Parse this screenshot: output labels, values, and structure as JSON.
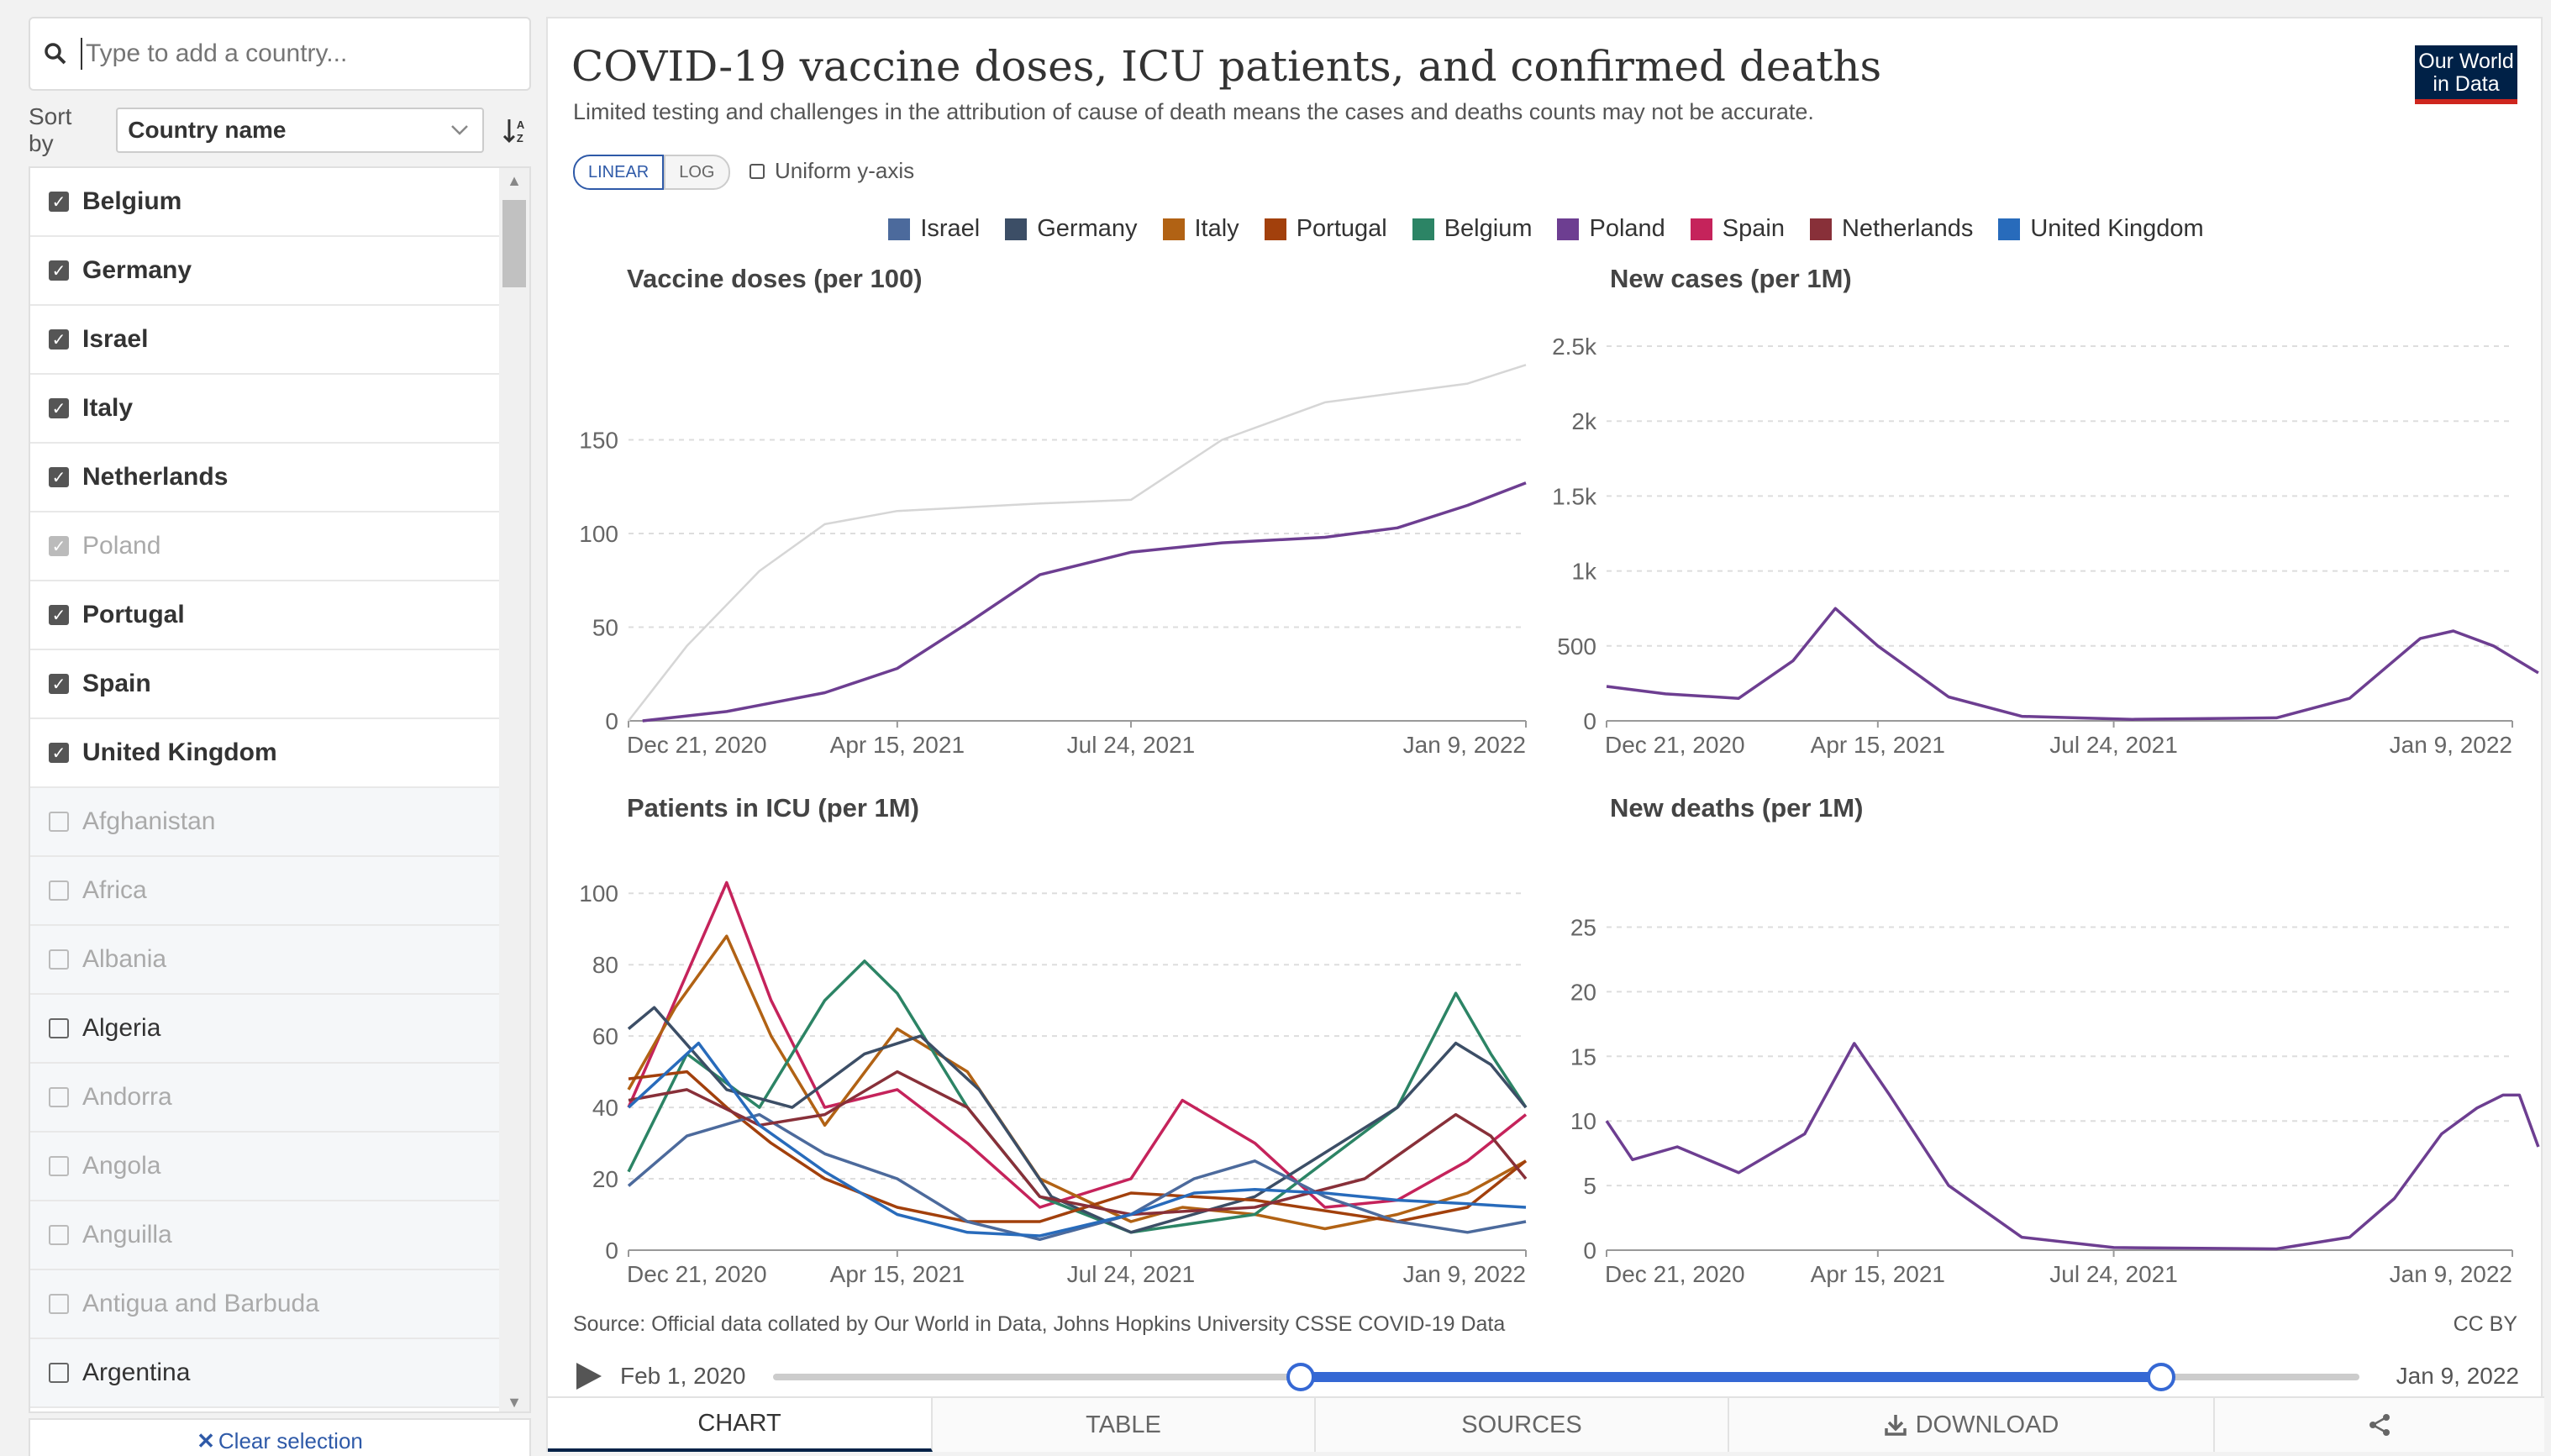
{
  "search": {
    "placeholder": "Type to add a country..."
  },
  "sort": {
    "label": "Sort by",
    "value": "Country name"
  },
  "countries": [
    {
      "name": "Belgium",
      "checked": true,
      "dim": false
    },
    {
      "name": "Germany",
      "checked": true,
      "dim": false
    },
    {
      "name": "Israel",
      "checked": true,
      "dim": false
    },
    {
      "name": "Italy",
      "checked": true,
      "dim": false
    },
    {
      "name": "Netherlands",
      "checked": true,
      "dim": false
    },
    {
      "name": "Poland",
      "checked": true,
      "dim": true
    },
    {
      "name": "Portugal",
      "checked": true,
      "dim": false
    },
    {
      "name": "Spain",
      "checked": true,
      "dim": false
    },
    {
      "name": "United Kingdom",
      "checked": true,
      "dim": false
    },
    {
      "name": "Afghanistan",
      "checked": false,
      "dim": true
    },
    {
      "name": "Africa",
      "checked": false,
      "dim": true
    },
    {
      "name": "Albania",
      "checked": false,
      "dim": true
    },
    {
      "name": "Algeria",
      "checked": false,
      "dim": false
    },
    {
      "name": "Andorra",
      "checked": false,
      "dim": true
    },
    {
      "name": "Angola",
      "checked": false,
      "dim": true
    },
    {
      "name": "Anguilla",
      "checked": false,
      "dim": true
    },
    {
      "name": "Antigua and Barbuda",
      "checked": false,
      "dim": true
    },
    {
      "name": "Argentina",
      "checked": false,
      "dim": false
    }
  ],
  "clear_label": "Clear selection",
  "header": {
    "title": "COVID-19 vaccine doses, ICU patients, and confirmed deaths",
    "subtitle": "Limited testing and challenges in the attribution of cause of death means the cases and deaths counts may not be accurate.",
    "logo_line1": "Our World",
    "logo_line2": "in Data"
  },
  "controls": {
    "linear": "LINEAR",
    "log": "LOG",
    "uniform": "Uniform y-axis"
  },
  "legend": [
    {
      "name": "Israel",
      "color": "#4c6a9c"
    },
    {
      "name": "Germany",
      "color": "#3c4e66"
    },
    {
      "name": "Italy",
      "color": "#b16214"
    },
    {
      "name": "Portugal",
      "color": "#a2400c"
    },
    {
      "name": "Belgium",
      "color": "#2c8465"
    },
    {
      "name": "Poland",
      "color": "#6d3e91"
    },
    {
      "name": "Spain",
      "color": "#c5235b"
    },
    {
      "name": "Netherlands",
      "color": "#883039"
    },
    {
      "name": "United Kingdom",
      "color": "#286bbb"
    }
  ],
  "chart_data": [
    {
      "type": "line",
      "title": "Vaccine doses (per 100)",
      "x_ticks": [
        "Dec 21, 2020",
        "Apr 15, 2021",
        "Jul 24, 2021",
        "Jan 9, 2022"
      ],
      "y_ticks": [
        "0",
        "50",
        "100",
        "150"
      ],
      "ylim": [
        0,
        200
      ],
      "highlighted": "Poland",
      "series": [
        {
          "name": "Poland",
          "highlight": true,
          "x": [
            "2020-12-27",
            "2021-02-01",
            "2021-03-15",
            "2021-04-15",
            "2021-05-15",
            "2021-06-15",
            "2021-07-24",
            "2021-09-01",
            "2021-10-15",
            "2021-11-15",
            "2021-12-15",
            "2022-01-09"
          ],
          "values": [
            0,
            5,
            15,
            28,
            52,
            78,
            90,
            95,
            98,
            103,
            115,
            127
          ]
        },
        {
          "name": "Israel",
          "highlight": false,
          "x": [
            "2020-12-21",
            "2021-01-15",
            "2021-02-15",
            "2021-03-15",
            "2021-04-15",
            "2021-06-15",
            "2021-07-24",
            "2021-09-01",
            "2021-10-15",
            "2021-12-15",
            "2022-01-09"
          ],
          "values": [
            0,
            40,
            80,
            105,
            112,
            116,
            118,
            150,
            170,
            180,
            190
          ]
        }
      ]
    },
    {
      "type": "line",
      "title": "New cases (per 1M)",
      "x_ticks": [
        "Dec 21, 2020",
        "Apr 15, 2021",
        "Jul 24, 2021",
        "Jan 9, 2022"
      ],
      "y_ticks": [
        "0",
        "500",
        "1k",
        "1.5k",
        "2k",
        "2.5k"
      ],
      "ylim": [
        0,
        2500
      ],
      "series": [
        {
          "name": "Poland",
          "highlight": true,
          "x": [
            "2020-12-21",
            "2021-01-15",
            "2021-02-15",
            "2021-03-10",
            "2021-03-28",
            "2021-04-15",
            "2021-05-15",
            "2021-06-15",
            "2021-08-01",
            "2021-10-01",
            "2021-11-01",
            "2021-12-01",
            "2021-12-15",
            "2022-01-01",
            "2022-01-20"
          ],
          "values": [
            230,
            180,
            150,
            400,
            750,
            500,
            160,
            30,
            10,
            20,
            150,
            550,
            600,
            500,
            320
          ]
        }
      ]
    },
    {
      "type": "line",
      "title": "Patients in ICU (per 1M)",
      "x_ticks": [
        "Dec 21, 2020",
        "Apr 15, 2021",
        "Jul 24, 2021",
        "Jan 9, 2022"
      ],
      "y_ticks": [
        "0",
        "20",
        "40",
        "60",
        "80",
        "100"
      ],
      "ylim": [
        0,
        105
      ],
      "series": [
        {
          "name": "Spain",
          "highlight": true,
          "x": [
            "2020-12-21",
            "2021-01-10",
            "2021-02-01",
            "2021-02-20",
            "2021-03-15",
            "2021-04-15",
            "2021-05-15",
            "2021-06-15",
            "2021-07-24",
            "2021-08-15",
            "2021-09-15",
            "2021-10-15",
            "2021-11-15",
            "2021-12-15",
            "2022-01-09"
          ],
          "values": [
            40,
            70,
            103,
            70,
            40,
            45,
            30,
            12,
            20,
            42,
            30,
            12,
            14,
            25,
            38
          ]
        },
        {
          "name": "Italy",
          "highlight": true,
          "x": [
            "2020-12-21",
            "2021-01-10",
            "2021-02-01",
            "2021-02-20",
            "2021-03-15",
            "2021-04-15",
            "2021-05-15",
            "2021-06-15",
            "2021-07-24",
            "2021-08-15",
            "2021-09-15",
            "2021-10-15",
            "2021-11-15",
            "2021-12-15",
            "2022-01-09"
          ],
          "values": [
            45,
            68,
            88,
            60,
            35,
            62,
            50,
            20,
            8,
            12,
            10,
            6,
            10,
            16,
            25
          ]
        },
        {
          "name": "Belgium",
          "highlight": true,
          "x": [
            "2020-12-21",
            "2021-01-15",
            "2021-02-15",
            "2021-03-15",
            "2021-04-01",
            "2021-04-15",
            "2021-05-15",
            "2021-06-15",
            "2021-07-24",
            "2021-09-15",
            "2021-11-15",
            "2021-12-10",
            "2021-12-25",
            "2022-01-09"
          ],
          "values": [
            22,
            55,
            40,
            70,
            81,
            72,
            40,
            15,
            5,
            10,
            40,
            72,
            55,
            40
          ]
        },
        {
          "name": "Germany",
          "highlight": true,
          "x": [
            "2020-12-21",
            "2021-01-01",
            "2021-02-01",
            "2021-03-01",
            "2021-04-01",
            "2021-04-25",
            "2021-05-20",
            "2021-06-20",
            "2021-07-24",
            "2021-09-15",
            "2021-11-15",
            "2021-12-10",
            "2021-12-25",
            "2022-01-09"
          ],
          "values": [
            62,
            68,
            45,
            40,
            55,
            60,
            45,
            15,
            5,
            15,
            40,
            58,
            52,
            40
          ]
        },
        {
          "name": "Portugal",
          "highlight": true,
          "x": [
            "2020-12-21",
            "2021-01-15",
            "2021-02-01",
            "2021-02-20",
            "2021-03-15",
            "2021-04-15",
            "2021-05-15",
            "2021-06-15",
            "2021-07-24",
            "2021-09-15",
            "2021-11-15",
            "2021-12-15",
            "2022-01-09"
          ],
          "values": [
            48,
            50,
            40,
            30,
            20,
            12,
            8,
            8,
            16,
            14,
            8,
            12,
            25
          ]
        },
        {
          "name": "Israel",
          "highlight": true,
          "x": [
            "2020-12-21",
            "2021-01-15",
            "2021-02-15",
            "2021-03-15",
            "2021-04-15",
            "2021-05-15",
            "2021-06-15",
            "2021-07-24",
            "2021-08-20",
            "2021-09-15",
            "2021-10-15",
            "2021-11-15",
            "2021-12-15",
            "2022-01-09"
          ],
          "values": [
            18,
            32,
            38,
            27,
            20,
            8,
            3,
            10,
            20,
            25,
            15,
            8,
            5,
            8
          ]
        },
        {
          "name": "Netherlands",
          "highlight": true,
          "x": [
            "2020-12-21",
            "2021-01-15",
            "2021-02-15",
            "2021-03-15",
            "2021-04-15",
            "2021-05-15",
            "2021-06-15",
            "2021-07-24",
            "2021-09-15",
            "2021-11-01",
            "2021-12-10",
            "2021-12-25",
            "2022-01-09"
          ],
          "values": [
            42,
            45,
            35,
            38,
            50,
            40,
            15,
            10,
            12,
            20,
            38,
            32,
            20
          ]
        },
        {
          "name": "United Kingdom",
          "highlight": true,
          "x": [
            "2020-12-21",
            "2021-01-20",
            "2021-02-15",
            "2021-03-15",
            "2021-04-15",
            "2021-05-15",
            "2021-06-15",
            "2021-07-24",
            "2021-08-20",
            "2021-09-15",
            "2021-10-15",
            "2021-11-15",
            "2021-12-15",
            "2022-01-09"
          ],
          "values": [
            40,
            58,
            35,
            22,
            10,
            5,
            4,
            10,
            16,
            17,
            16,
            14,
            13,
            12
          ]
        }
      ]
    },
    {
      "type": "line",
      "title": "New deaths (per 1M)",
      "x_ticks": [
        "Dec 21, 2020",
        "Apr 15, 2021",
        "Jul 24, 2021",
        "Jan 9, 2022"
      ],
      "y_ticks": [
        "0",
        "5",
        "10",
        "15",
        "20",
        "25"
      ],
      "ylim": [
        0,
        29
      ],
      "series": [
        {
          "name": "Poland",
          "highlight": true,
          "x": [
            "2020-12-21",
            "2021-01-01",
            "2021-01-20",
            "2021-02-15",
            "2021-03-15",
            "2021-04-05",
            "2021-04-20",
            "2021-05-15",
            "2021-06-15",
            "2021-07-24",
            "2021-10-01",
            "2021-11-01",
            "2021-11-20",
            "2021-12-10",
            "2021-12-25",
            "2022-01-05",
            "2022-01-12",
            "2022-01-20"
          ],
          "values": [
            10,
            7,
            8,
            6,
            9,
            16,
            12,
            5,
            1,
            0.2,
            0.1,
            1,
            4,
            9,
            11,
            12,
            12,
            8
          ]
        }
      ]
    }
  ],
  "footer": {
    "source": "Source: Official data collated by Our World in Data, Johns Hopkins University CSSE COVID-19 Data",
    "license": "CC BY",
    "timeline_start": "Feb 1, 2020",
    "timeline_end": "Jan 9, 2022"
  },
  "tabs": [
    "CHART",
    "TABLE",
    "SOURCES",
    "DOWNLOAD",
    ""
  ]
}
